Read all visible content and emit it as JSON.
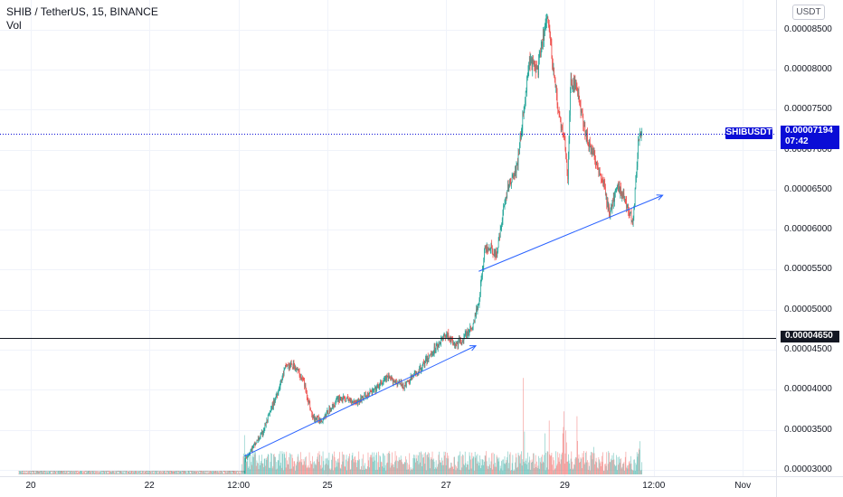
{
  "legend": {
    "title": "SHIB / TetherUS, 15, BINANCE",
    "volume": "Vol"
  },
  "currency_button": "USDT",
  "price_tag": {
    "symbol": "SHIBUSDT",
    "price": "0.00007194",
    "countdown": "07:42"
  },
  "level_tag": "0.00004650",
  "chart_data": {
    "type": "candlestick",
    "title": "SHIB / TetherUS, 15, BINANCE",
    "y_axis_labels": [
      "0.00003000",
      "0.00003500",
      "0.00004000",
      "0.00004500",
      "0.00005000",
      "0.00005500",
      "0.00006000",
      "0.00006500",
      "0.00007000",
      "0.00007500",
      "0.00008000",
      "0.00008500"
    ],
    "y_axis_values": [
      3e-05,
      3.5e-05,
      4e-05,
      4.5e-05,
      5e-05,
      5.5e-05,
      6e-05,
      6.5e-05,
      7e-05,
      7.5e-05,
      8e-05,
      8.5e-05
    ],
    "ylim": [
      2.92e-05,
      8.87e-05
    ],
    "x_axis_labels": [
      "20",
      "22",
      "12:00",
      "25",
      "27",
      "29",
      "12:00",
      "Nov"
    ],
    "x_axis_positions": [
      0,
      2,
      3.5,
      5,
      7,
      9,
      10.5,
      12
    ],
    "x_start_offset": -0.2,
    "x_end": 12.9,
    "last_price": 7.194e-05,
    "horizontal_level": 4.65e-05,
    "price_path": [
      [
        -0.2,
        2.98e-05
      ],
      [
        3.6,
        2.98e-05
      ],
      [
        3.62,
        3.15e-05
      ],
      [
        3.9,
        3.45e-05
      ],
      [
        4.15,
        3.95e-05
      ],
      [
        4.3,
        4.3e-05
      ],
      [
        4.45,
        4.3e-05
      ],
      [
        4.6,
        4.1e-05
      ],
      [
        4.75,
        3.65e-05
      ],
      [
        4.9,
        3.62e-05
      ],
      [
        5.2,
        3.9e-05
      ],
      [
        5.5,
        3.85e-05
      ],
      [
        5.8,
        4e-05
      ],
      [
        6.0,
        4.15e-05
      ],
      [
        6.3,
        4.05e-05
      ],
      [
        6.55,
        4.25e-05
      ],
      [
        6.75,
        4.45e-05
      ],
      [
        7.0,
        4.7e-05
      ],
      [
        7.15,
        4.55e-05
      ],
      [
        7.3,
        4.65e-05
      ],
      [
        7.45,
        4.8e-05
      ],
      [
        7.55,
        5.1e-05
      ],
      [
        7.65,
        5.75e-05
      ],
      [
        7.75,
        5.8e-05
      ],
      [
        7.85,
        5.65e-05
      ],
      [
        7.95,
        6.2e-05
      ],
      [
        8.05,
        6.55e-05
      ],
      [
        8.2,
        6.8e-05
      ],
      [
        8.3,
        7.45e-05
      ],
      [
        8.4,
        8.1e-05
      ],
      [
        8.55,
        8e-05
      ],
      [
        8.7,
        8.7e-05
      ],
      [
        8.8,
        8.05e-05
      ],
      [
        8.9,
        7.45e-05
      ],
      [
        9.0,
        7.05e-05
      ],
      [
        9.05,
        6.65e-05
      ],
      [
        9.1,
        7.85e-05
      ],
      [
        9.2,
        7.8e-05
      ],
      [
        9.35,
        7.2e-05
      ],
      [
        9.5,
        6.9e-05
      ],
      [
        9.65,
        6.6e-05
      ],
      [
        9.75,
        6.2e-05
      ],
      [
        9.9,
        6.55e-05
      ],
      [
        10.05,
        6.3e-05
      ],
      [
        10.15,
        6.1e-05
      ],
      [
        10.25,
        7.2e-05
      ],
      [
        10.3,
        7.19e-05
      ]
    ],
    "volume_spikes": [
      [
        3.6,
        0.3
      ],
      [
        7.95,
        0.6
      ],
      [
        8.3,
        0.85
      ],
      [
        8.7,
        1.0
      ],
      [
        9.0,
        0.8
      ],
      [
        9.2,
        0.55
      ],
      [
        9.5,
        0.4
      ],
      [
        10.25,
        0.35
      ]
    ],
    "trendlines": [
      {
        "from": [
          3.6,
          3.17e-05
        ],
        "to": [
          7.5,
          4.55e-05
        ],
        "arrow": true
      },
      {
        "from": [
          7.55,
          5.48e-05
        ],
        "to": [
          10.65,
          6.43e-05
        ],
        "arrow": true
      }
    ],
    "grid": true
  }
}
